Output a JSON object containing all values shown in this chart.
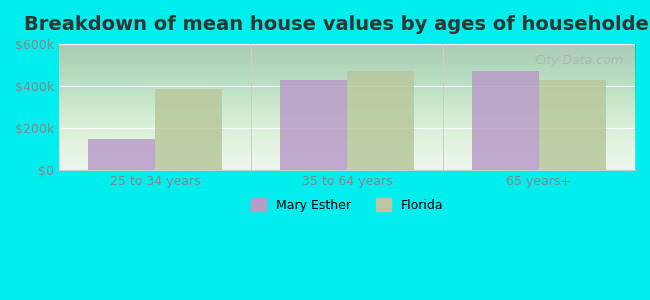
{
  "title": "Breakdown of mean house values by ages of householders",
  "categories": [
    "25 to 34 years",
    "35 to 64 years",
    "65 years+"
  ],
  "mary_esther": [
    150000,
    430000,
    470000
  ],
  "florida": [
    385000,
    470000,
    430000
  ],
  "mary_esther_color": "#b89cc8",
  "florida_color": "#b8c89c",
  "background_color": "#00eeee",
  "plot_bg_gradient_top": "#f0faf0",
  "plot_bg_gradient_bottom": "#d8f0d8",
  "ylim": [
    0,
    600000
  ],
  "yticks": [
    0,
    200000,
    400000,
    600000
  ],
  "ytick_labels": [
    "$0",
    "$200k",
    "$400k",
    "$600k"
  ],
  "legend_labels": [
    "Mary Esther",
    "Florida"
  ],
  "bar_width": 0.35,
  "title_fontsize": 14,
  "tick_fontsize": 9,
  "legend_fontsize": 9,
  "watermark_text": "City-Data.com"
}
